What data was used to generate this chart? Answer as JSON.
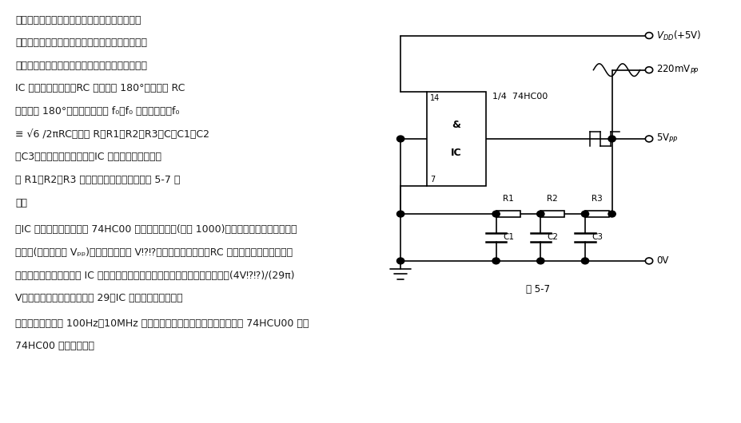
{
  "bg_color": "#ffffff",
  "text_color": "#1a1a1a",
  "fig_width": 9.28,
  "fig_height": 5.3,
  "lines_p1": [
    "　本电路的特点是，仅用一个普通反相门和少数",
    "元件构成一个时钒发生器，还能同时输出两种同频",
    "率放形：方波和正弦波。电路工作条件是，反相器",
    "IC 具有很高的增益；RC 两络引入 180°相移。使 RC",
    "网络产生 180°相移的振荡频率 f₀。f₀ 计算公式为：f₀",
    "≡ √6 /2πRC。式中 R＝R1＝R2＝R3，C＝C1＝C2",
    "＝C3。象线性放大器一样，IC 也需设置偏压，在此",
    "由 R1、R2、R3 支路提供。电路原理图如图 5-7 所",
    "示。"
  ],
  "lines_p2": [
    "　IC 输出方波，这是因为 74HC00 反相门增益很高(大于 1000)而使其输出饱和所形成。方",
    "波幅度(即峰－峰値 Vₚₚ)约等于电源电压 V⁉⁉，其基波幅度不同。RC 网络既有移相又有低通滤",
    "波之功能。在其输出端即 IC 的输入端得到一个略有失真的正弦波，其幅度为：(4V⁉⁉)/(29π)",
    "V。如果反相器的增益恰好为 29，IC 输出的将是正弦波。"
  ],
  "lines_p3": [
    "　该振荡器频率在 100Hz～10MHz 范围内工作良好。若用无缓冲输出级的 74HCU00 代替",
    "74HC00 效果则更好。"
  ],
  "caption": "图 5-7"
}
